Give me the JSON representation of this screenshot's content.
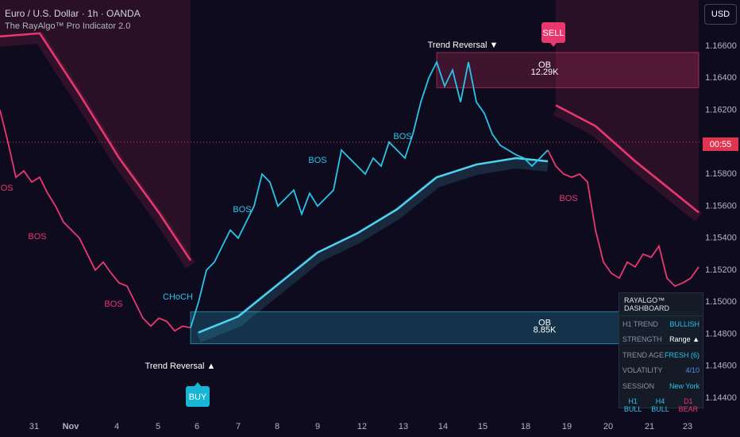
{
  "header": {
    "symbol": "Euro / U.S. Dollar · 1h · OANDA",
    "indicator": "The RayAlgo™ Pro Indicator 2.0",
    "currency": "USD",
    "countdown": "00:55"
  },
  "chart_data": {
    "type": "line",
    "x": [
      0,
      1,
      2,
      3,
      4,
      5,
      6,
      7,
      8,
      9,
      10,
      11,
      12,
      13,
      14,
      15,
      16,
      17,
      18,
      19,
      20,
      21,
      22,
      23,
      24,
      25,
      26,
      27,
      28,
      29,
      30,
      31,
      32,
      33,
      34,
      35,
      36,
      37,
      38,
      39,
      40,
      41,
      42,
      43,
      44,
      45,
      46,
      47,
      48,
      49,
      50,
      51,
      52,
      53,
      54,
      55,
      56,
      57,
      58,
      59,
      60,
      61,
      62,
      63,
      64,
      65,
      66,
      67,
      68,
      69,
      70,
      71,
      72,
      73,
      74,
      75,
      76,
      77,
      78,
      79,
      80,
      81,
      82,
      83,
      84,
      85,
      86,
      87,
      88
    ],
    "series": [
      {
        "color": "#e8386f",
        "values": [
          1.162,
          1.16,
          1.1578,
          1.1582,
          1.1575,
          1.1578,
          1.1568,
          1.156,
          1.155,
          1.1545,
          1.154,
          1.153,
          1.152,
          1.1525,
          1.1518,
          1.1512,
          1.151,
          1.15,
          1.149,
          1.1485,
          1.149,
          1.1488,
          1.1482,
          1.1485,
          1.1484,
          null,
          null,
          null,
          null,
          null,
          null,
          null,
          null,
          null,
          null,
          null,
          null,
          null,
          null,
          null,
          null,
          null,
          null,
          null,
          null,
          null,
          null,
          null,
          null,
          null,
          null,
          null,
          null,
          null,
          null,
          null,
          null,
          null,
          null,
          null,
          null,
          null,
          null,
          null,
          null,
          null,
          null,
          null,
          null,
          1.1595,
          1.1585,
          1.158,
          1.1578,
          1.158,
          1.1575,
          1.1545,
          1.1525,
          1.1518,
          1.1515,
          1.1525,
          1.1522,
          1.153,
          1.1528,
          1.1535,
          1.1515,
          1.151,
          1.1512,
          1.1515,
          1.1522
        ]
      },
      {
        "color": "#29c5e6",
        "values": [
          null,
          null,
          null,
          null,
          null,
          null,
          null,
          null,
          null,
          null,
          null,
          null,
          null,
          null,
          null,
          null,
          null,
          null,
          null,
          null,
          null,
          null,
          null,
          null,
          1.1484,
          1.15,
          1.152,
          1.1525,
          1.1535,
          1.1545,
          1.154,
          1.155,
          1.156,
          1.158,
          1.1575,
          1.156,
          1.1565,
          1.157,
          1.1555,
          1.1568,
          1.156,
          1.1565,
          1.157,
          1.1595,
          1.159,
          1.1585,
          1.158,
          1.159,
          1.1585,
          1.16,
          1.1595,
          1.159,
          1.1605,
          1.1625,
          1.164,
          1.165,
          1.1635,
          1.1645,
          1.1625,
          1.165,
          1.1625,
          1.1618,
          1.1605,
          1.1598,
          1.1595,
          1.1592,
          1.159,
          1.1585,
          1.159,
          1.1595,
          null,
          null,
          null,
          null,
          null,
          null,
          null,
          null,
          null,
          null,
          null,
          null,
          null,
          null,
          null,
          null,
          null,
          null,
          null
        ]
      }
    ],
    "trend_lines": [
      {
        "color": "#e8386f",
        "x": [
          0,
          5,
          10,
          15,
          20,
          24
        ],
        "values": [
          1.1666,
          1.1668,
          1.163,
          1.159,
          1.1556,
          1.1526
        ]
      },
      {
        "color": "#4fd3f0",
        "x": [
          25,
          30,
          35,
          40,
          45,
          50,
          55,
          60,
          65,
          69
        ],
        "values": [
          1.1481,
          1.1491,
          1.1511,
          1.1531,
          1.1543,
          1.1558,
          1.1578,
          1.1586,
          1.159,
          1.1588
        ]
      },
      {
        "color": "#e8386f",
        "x": [
          70,
          75,
          80,
          85,
          88
        ],
        "values": [
          1.1623,
          1.161,
          1.1588,
          1.1568,
          1.1556
        ]
      }
    ],
    "zones": [
      {
        "label": "OB",
        "volume": "12.29K",
        "color": "#e8386f",
        "x": [
          55,
          88
        ],
        "bounds": [
          1.1634,
          1.1656
        ]
      },
      {
        "label": "OB",
        "volume": "8.85K",
        "color": "#29c5e6",
        "x": [
          24,
          88
        ],
        "bounds": [
          1.1474,
          1.1494
        ]
      }
    ],
    "current_price": 1.16,
    "annotations": [
      {
        "text": "Trend Reversal ▼",
        "color": "#ffffff"
      },
      {
        "text": "Trend Reversal ▲",
        "color": "#ffffff"
      },
      {
        "text": "CHoCH",
        "color": "#29c5e6"
      },
      {
        "text": "BOS",
        "color": "#29c5e6"
      },
      {
        "text": "BOS",
        "color": "#29c5e6"
      },
      {
        "text": "BOS",
        "color": "#29c5e6"
      },
      {
        "text": "BOS",
        "color": "#e8386f"
      },
      {
        "text": "BOS",
        "color": "#e8386f"
      },
      {
        "text": "BOS",
        "color": "#e8386f"
      },
      {
        "text": "BOS",
        "color": "#e8386f"
      }
    ],
    "signals": [
      {
        "text": "SELL",
        "color": "#e8386f"
      },
      {
        "text": "BUY",
        "color": "#17b6d4"
      }
    ],
    "xlim": [
      0,
      88
    ],
    "ylim": [
      1.14306,
      1.16888
    ],
    "xticks": [
      {
        "value": 4.3,
        "label": "31"
      },
      {
        "value": 8.9,
        "label": "Nov"
      },
      {
        "value": 14.7,
        "label": "4"
      },
      {
        "value": 19.9,
        "label": "5"
      },
      {
        "value": 24.8,
        "label": "6"
      },
      {
        "value": 30,
        "label": "7"
      },
      {
        "value": 34.9,
        "label": "8"
      },
      {
        "value": 40,
        "label": "9"
      },
      {
        "value": 45.6,
        "label": "12"
      },
      {
        "value": 50.8,
        "label": "13"
      },
      {
        "value": 55.8,
        "label": "14"
      },
      {
        "value": 60.8,
        "label": "15"
      },
      {
        "value": 66.2,
        "label": "18"
      },
      {
        "value": 71.4,
        "label": "19"
      },
      {
        "value": 76.6,
        "label": "20"
      },
      {
        "value": 81.8,
        "label": "21"
      },
      {
        "value": 86.6,
        "label": "23"
      }
    ],
    "yticks": [
      {
        "value": 1.144,
        "label": "1.14400"
      },
      {
        "value": 1.146,
        "label": "1.14600"
      },
      {
        "value": 1.148,
        "label": "1.14800"
      },
      {
        "value": 1.15,
        "label": "1.15000"
      },
      {
        "value": 1.152,
        "label": "1.15200"
      },
      {
        "value": 1.154,
        "label": "1.15400"
      },
      {
        "value": 1.156,
        "label": "1.15600"
      },
      {
        "value": 1.158,
        "label": "1.15800"
      },
      {
        "value": 1.162,
        "label": "1.16200"
      },
      {
        "value": 1.164,
        "label": "1.16400"
      },
      {
        "value": 1.166,
        "label": "1.16600"
      }
    ],
    "grid": false
  },
  "dashboard": {
    "title": "RAYALGO™ DASHBOARD",
    "rows": [
      [
        "H1 TREND",
        "BULLISH"
      ],
      [
        "STRENGTH",
        "Range ▲"
      ],
      [
        "TREND AGE",
        "FRESH (6)"
      ],
      [
        "VOLATILITY",
        "4/10"
      ],
      [
        "SESSION",
        "New York"
      ]
    ],
    "timeframes": [
      [
        "H1",
        "BULL"
      ],
      [
        "H4",
        "BULL"
      ],
      [
        "D1",
        "BEAR"
      ]
    ]
  }
}
